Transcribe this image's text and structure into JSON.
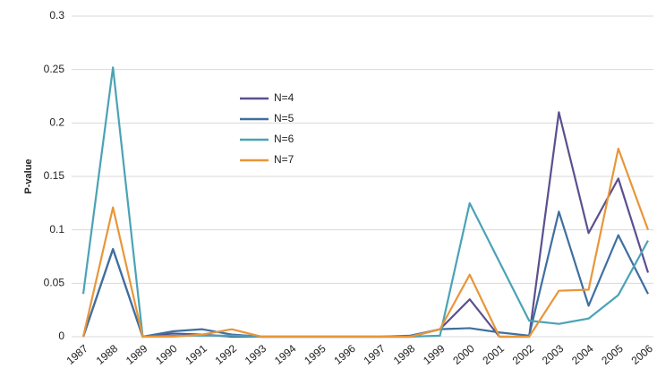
{
  "chart_data": {
    "type": "line",
    "y_label": "P-value",
    "categories": [
      "1987",
      "1988",
      "1989",
      "1990",
      "1991",
      "1992",
      "1993",
      "1994",
      "1995",
      "1996",
      "1997",
      "1998",
      "1999",
      "2000",
      "2001",
      "2002",
      "2003",
      "2004",
      "2005",
      "2006"
    ],
    "series": [
      {
        "name": "N=4",
        "color": "#5b4f8f",
        "values": [
          0,
          0.082,
          0,
          0.003,
          0.002,
          0,
          0,
          0,
          0,
          0,
          0,
          0,
          0.007,
          0.035,
          0,
          0,
          0.21,
          0.097,
          0.148,
          0.06
        ]
      },
      {
        "name": "N=5",
        "color": "#3f6f9f",
        "values": [
          0,
          0.082,
          0,
          0.005,
          0.007,
          0.002,
          0,
          0,
          0,
          0,
          0,
          0.001,
          0.007,
          0.008,
          0.004,
          0.001,
          0.117,
          0.029,
          0.095,
          0.04
        ]
      },
      {
        "name": "N=6",
        "color": "#4aa3b4",
        "values": [
          0.04,
          0.252,
          0,
          0.001,
          0.001,
          0.001,
          0,
          0,
          0,
          0,
          0,
          0,
          0.001,
          0.125,
          0.07,
          0.015,
          0.012,
          0.017,
          0.039,
          0.09
        ]
      },
      {
        "name": "N=7",
        "color": "#e8963a",
        "values": [
          0,
          0.121,
          0,
          0,
          0.002,
          0.007,
          0,
          0,
          0,
          0,
          0,
          0,
          0.007,
          0.058,
          0,
          0,
          0.043,
          0.044,
          0.176,
          0.1
        ]
      }
    ],
    "ylim": [
      0,
      0.3
    ],
    "yticks": [
      0,
      0.05,
      0.1,
      0.15,
      0.2,
      0.25,
      0.3
    ],
    "grid": true
  }
}
